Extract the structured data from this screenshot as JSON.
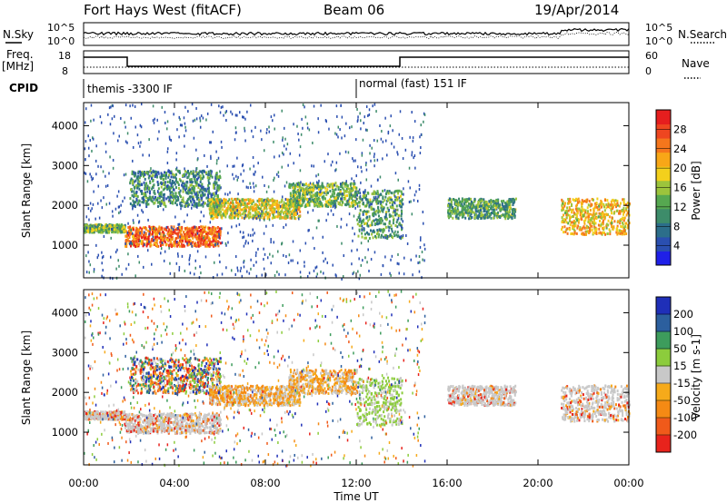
{
  "header": {
    "station": "Fort Hays West (fitACF)",
    "beam": "Beam 06",
    "date": "19/Apr/2014"
  },
  "left_labels": {
    "nsky": "N.Sky",
    "nsky_hi": "10^5",
    "nsky_lo": "10^0",
    "freq1": "Freq.",
    "freq2": "[MHz]",
    "freq_hi": "18",
    "freq_lo": "8",
    "cpid": "CPID"
  },
  "right_labels": {
    "nsearch": "N.Search",
    "nsearch_hi": "10^5",
    "nsearch_lo": "10^0",
    "nave": "Nave",
    "nave_hi": "60",
    "nave_lo": "0"
  },
  "cpid_segments": [
    {
      "label": "themis -3300 IF",
      "start_hour": 0
    },
    {
      "label": "normal (fast) 151 IF",
      "start_hour": 12
    }
  ],
  "chart_data": [
    {
      "type": "heatmap",
      "name": "power",
      "ylabel": "Slant Range [km]",
      "ylim": [
        180,
        4580
      ],
      "yticks": [
        "1000",
        "2000",
        "3000",
        "4000"
      ],
      "ytick_values": [
        1000,
        2000,
        3000,
        4000
      ],
      "colorbar": {
        "label": "Power [dB]",
        "range": [
          0,
          32
        ],
        "ticks": [
          "4",
          "8",
          "12",
          "16",
          "20",
          "24",
          "28"
        ],
        "tick_values": [
          4,
          8,
          12,
          16,
          20,
          24,
          28
        ],
        "colors": [
          "#1f20e8",
          "#2a4fb0",
          "#2c6e8a",
          "#3d8c6a",
          "#56a850",
          "#9cc43c",
          "#f3d01c",
          "#f8a717",
          "#f5761c",
          "#ee4620",
          "#e61e1e"
        ]
      }
    },
    {
      "type": "heatmap",
      "name": "velocity",
      "ylabel": "Slant Range [km]",
      "ylim": [
        180,
        4580
      ],
      "yticks": [
        "1000",
        "2000",
        "3000",
        "4000"
      ],
      "ytick_values": [
        1000,
        2000,
        3000,
        4000
      ],
      "colorbar": {
        "label": "Velocity [m s-1]",
        "ticks": [
          "-200",
          "-100",
          "-50",
          "-15",
          "15",
          "50",
          "100",
          "200"
        ],
        "colors": [
          "#e8231c",
          "#f05a1a",
          "#f58a14",
          "#f6aa1a",
          "#c8c8c8",
          "#8ccc3c",
          "#3d9c5c",
          "#2c5f9e",
          "#1f2fb8"
        ]
      }
    }
  ],
  "time_axis": {
    "xlabel": "Time UT",
    "xlim": [
      0,
      24
    ],
    "ticks": [
      "00:00",
      "04:00",
      "08:00",
      "12:00",
      "16:00",
      "20:00",
      "00:00"
    ],
    "tick_values": [
      0,
      4,
      8,
      12,
      16,
      20,
      24
    ]
  },
  "scatter_regions": [
    {
      "t0": 1.8,
      "t1": 6.0,
      "r0": 1000,
      "r1": 1500,
      "power": 26,
      "vel": "grey"
    },
    {
      "t0": 2.0,
      "t1": 6.0,
      "r0": 2000,
      "r1": 2900,
      "power": 10,
      "vel": "mixed"
    },
    {
      "t0": 5.5,
      "t1": 9.5,
      "r0": 1700,
      "r1": 2200,
      "power": 18,
      "vel": "orange"
    },
    {
      "t0": 9.0,
      "t1": 12.0,
      "r0": 2000,
      "r1": 2600,
      "power": 14,
      "vel": "orange"
    },
    {
      "t0": 12.0,
      "t1": 14.0,
      "r0": 1200,
      "r1": 2400,
      "power": 12,
      "vel": "green"
    },
    {
      "t0": 0.0,
      "t1": 1.8,
      "r0": 1350,
      "r1": 1550,
      "power": 14,
      "vel": "grey"
    },
    {
      "t0": 21.0,
      "t1": 24.0,
      "r0": 1300,
      "r1": 2200,
      "power": 20,
      "vel": "grey"
    },
    {
      "t0": 16.0,
      "t1": 19.0,
      "r0": 1700,
      "r1": 2200,
      "power": 12,
      "vel": "grey"
    }
  ]
}
